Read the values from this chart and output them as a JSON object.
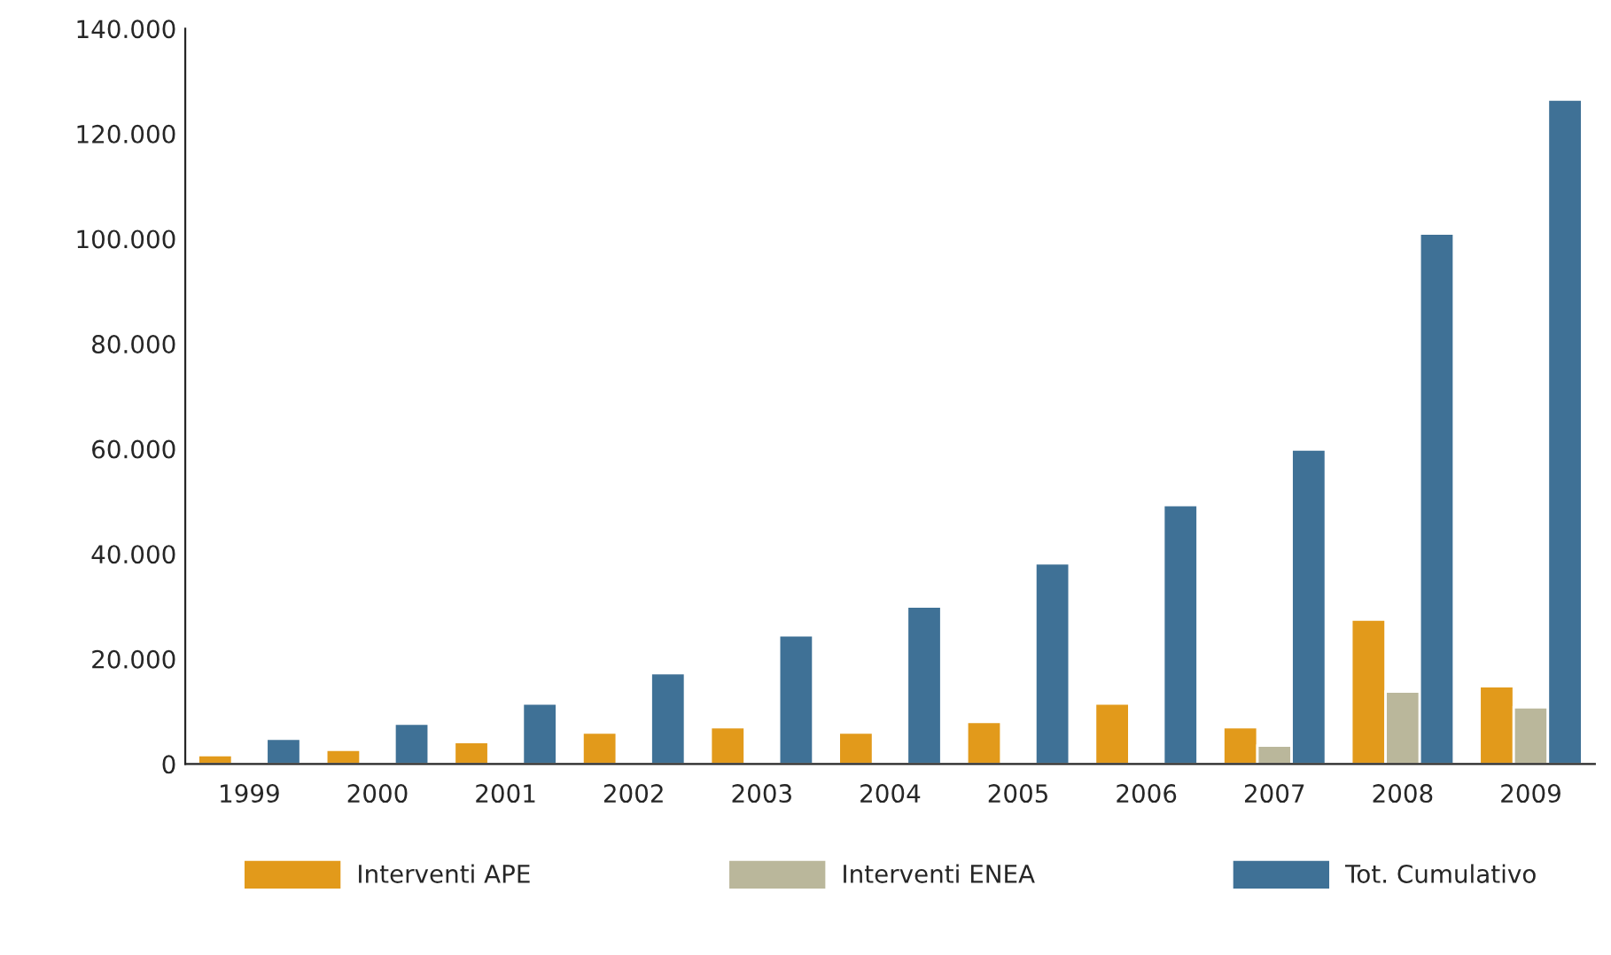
{
  "chart_data": {
    "type": "bar",
    "categories": [
      "1999",
      "2000",
      "2001",
      "2002",
      "2003",
      "2004",
      "2005",
      "2006",
      "2007",
      "2008",
      "2009"
    ],
    "series": [
      {
        "name": "Interventi APE",
        "color": "#e29a1b",
        "values": [
          1700,
          2700,
          4200,
          6000,
          7000,
          6000,
          8000,
          11500,
          7000,
          27500,
          14800
        ]
      },
      {
        "name": "Interventi ENEA",
        "color": "#bab79b",
        "values": [
          null,
          null,
          null,
          null,
          null,
          null,
          null,
          null,
          3500,
          13800,
          10800
        ]
      },
      {
        "name": "Tot. Cumulativo",
        "color": "#3f7196",
        "values": [
          4800,
          7700,
          11500,
          17300,
          24500,
          30000,
          38200,
          49300,
          59900,
          101000,
          126500
        ]
      }
    ],
    "ylim": [
      0,
      140000
    ],
    "yticks": [
      {
        "value": 0,
        "label": "0"
      },
      {
        "value": 20000,
        "label": "20.000"
      },
      {
        "value": 40000,
        "label": "40.000"
      },
      {
        "value": 60000,
        "label": "60.000"
      },
      {
        "value": 80000,
        "label": "80.000"
      },
      {
        "value": 100000,
        "label": "100.000"
      },
      {
        "value": 120000,
        "label": "120.000"
      },
      {
        "value": 140000,
        "label": "140.000"
      }
    ],
    "grid": false,
    "legend": "bottom"
  }
}
